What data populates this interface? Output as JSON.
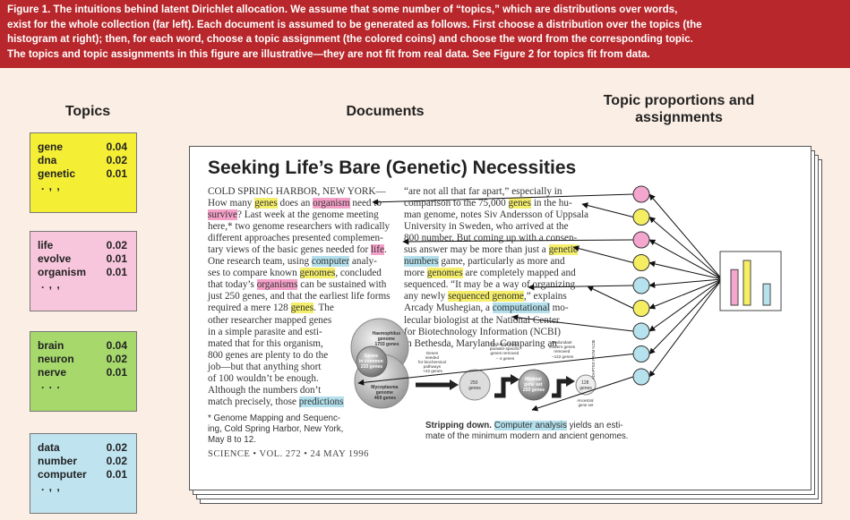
{
  "caption": {
    "lines": [
      "Figure 1. The intuitions behind latent Dirichlet allocation. We assume that some number of “topics,” which are distributions over words,",
      "exist for the whole collection (far left). Each document is assumed to be generated as follows. First choose a distribution over the topics (the",
      "histogram at right); then, for each word, choose a topic assignment (the colored coins) and choose the word from the corresponding topic.",
      "The topics and topic assignments in this figure are illustrative—they are not fit from real data. See Figure 2 for topics fit from data."
    ]
  },
  "headings": {
    "topics": "Topics",
    "documents": "Documents",
    "proportions_line1": "Topic proportions and",
    "proportions_line2": "assignments"
  },
  "topics": [
    {
      "color": "#f4ee35",
      "words": [
        {
          "w": "gene",
          "p": "0.04"
        },
        {
          "w": "dna",
          "p": "0.02"
        },
        {
          "w": "genetic",
          "p": "0.01"
        }
      ],
      "dots": ". , ,"
    },
    {
      "color": "#f8c6dc",
      "words": [
        {
          "w": "life",
          "p": "0.02"
        },
        {
          "w": "evolve",
          "p": "0.01"
        },
        {
          "w": "organism",
          "p": "0.01"
        }
      ],
      "dots": ". , ,"
    },
    {
      "color": "#a6d86c",
      "words": [
        {
          "w": "brain",
          "p": "0.04"
        },
        {
          "w": "neuron",
          "p": "0.02"
        },
        {
          "w": "nerve",
          "p": "0.01"
        }
      ],
      "dots": ". . ."
    },
    {
      "color": "#bfe4f0",
      "words": [
        {
          "w": "data",
          "p": "0.02"
        },
        {
          "w": "number",
          "p": "0.02"
        },
        {
          "w": "computer",
          "p": "0.01"
        }
      ],
      "dots": ". , ,"
    }
  ],
  "document": {
    "title": "Seeking Life’s Bare (Genetic) Necessities",
    "left_column": [
      [
        {
          "t": "COLD SPRING HARBOR, NEW YORK—"
        }
      ],
      [
        {
          "t": "How many "
        },
        {
          "t": "genes",
          "hl": "yellow"
        },
        {
          "t": " does an "
        },
        {
          "t": "organism",
          "hl": "pink"
        },
        {
          "t": " need to"
        }
      ],
      [
        {
          "t": "survive",
          "hl": "pink"
        },
        {
          "t": "? Last week at the genome meeting"
        }
      ],
      [
        {
          "t": "here,* two genome researchers with radically"
        }
      ],
      [
        {
          "t": "different approaches presented complemen-"
        }
      ],
      [
        {
          "t": "tary views of the basic genes needed for "
        },
        {
          "t": "life",
          "hl": "pink"
        },
        {
          "t": "."
        }
      ],
      [
        {
          "t": "One research team, using "
        },
        {
          "t": "computer",
          "hl": "blue"
        },
        {
          "t": " analy-"
        }
      ],
      [
        {
          "t": "ses to compare known "
        },
        {
          "t": "genomes",
          "hl": "yellow"
        },
        {
          "t": ", concluded"
        }
      ],
      [
        {
          "t": "that today’s "
        },
        {
          "t": "organisms",
          "hl": "pink"
        },
        {
          "t": " can be sustained with"
        }
      ],
      [
        {
          "t": "just 250 genes, and that the earliest life forms"
        }
      ],
      [
        {
          "t": "required a mere 128 "
        },
        {
          "t": "genes",
          "hl": "yellow"
        },
        {
          "t": ". The"
        }
      ],
      [
        {
          "t": "other researcher mapped genes"
        }
      ],
      [
        {
          "t": "in a simple parasite and esti-"
        }
      ],
      [
        {
          "t": "mated that for this organism,"
        }
      ],
      [
        {
          "t": "800 genes are plenty to do the"
        }
      ],
      [
        {
          "t": "job—but that anything short"
        }
      ],
      [
        {
          "t": "of 100 wouldn’t be enough."
        }
      ],
      [
        {
          "t": "   Although the numbers don’t"
        }
      ],
      [
        {
          "t": "match precisely, those "
        },
        {
          "t": "predictions",
          "hl": "blue"
        }
      ]
    ],
    "right_column": [
      [
        {
          "t": "“are not all that far apart,” especially in"
        }
      ],
      [
        {
          "t": "comparison to the 75,000 "
        },
        {
          "t": "genes",
          "hl": "yellow"
        },
        {
          "t": " in the hu-"
        }
      ],
      [
        {
          "t": "man genome, notes Siv Andersson of Uppsala"
        }
      ],
      [
        {
          "t": "University in Sweden, who arrived at the"
        }
      ],
      [
        {
          "t": "800 number. But coming up with a consen-"
        }
      ],
      [
        {
          "t": "sus answer may be more than just a "
        },
        {
          "t": "genetic",
          "hl": "yellow"
        }
      ],
      [
        {
          "t": "numbers",
          "hl": "blue"
        },
        {
          "t": " game, particularly as more and"
        }
      ],
      [
        {
          "t": "more "
        },
        {
          "t": "genomes",
          "hl": "yellow"
        },
        {
          "t": " are completely mapped and"
        }
      ],
      [
        {
          "t": "sequenced. “It may be a way of organizing"
        }
      ],
      [
        {
          "t": "any newly "
        },
        {
          "t": "sequenced genome",
          "hl": "yellow"
        },
        {
          "t": ",” explains"
        }
      ],
      [
        {
          "t": "Arcady Mushegian, a "
        },
        {
          "t": "computational",
          "hl": "blue"
        },
        {
          "t": " mo-"
        }
      ],
      [
        {
          "t": "lecular biologist at the National Center"
        }
      ],
      [
        {
          "t": "for Biotechnology Information (NCBI)"
        }
      ],
      [
        {
          "t": "in Bethesda, Maryland. Comparing an"
        }
      ]
    ],
    "footnote": [
      "* Genome Mapping and Sequenc-",
      "ing, Cold Spring Harbor, New York,",
      "May 8 to 12."
    ],
    "science_line": "SCIENCE • VOL. 272 • 24 MAY 1996",
    "figure_caption_bold": "Stripping down.",
    "figure_caption_hl": "Computer analysis",
    "figure_caption_rest": " yields an esti-",
    "figure_caption_line2": "mate of the minimum modern and ancient genomes.",
    "figure_labels": {
      "haemophilus": [
        "Haemophilus",
        "genome",
        "1703 genes"
      ],
      "genes_in_common": [
        "Genes",
        "in common",
        "233 genes"
      ],
      "mycoplasma": [
        "Mycoplasma",
        "genome",
        "469 genes"
      ],
      "genes_needed": [
        "Genes",
        "needed",
        "for biochemical",
        "pathways",
        "+22 genes"
      ],
      "redundant": [
        "Redundant and",
        "parasite-specific",
        "genes removed",
        "− 4 genes"
      ],
      "redundant2": [
        "Redundant",
        "modern genes",
        "removed",
        "−122 genes"
      ],
      "g250": [
        "250",
        "genes"
      ],
      "minimal": [
        "Minimal",
        "gene set",
        "250 genes"
      ],
      "g128": [
        "128",
        "genes"
      ],
      "ancestral": [
        "Ancestral",
        "gene set"
      ],
      "adapted": "ADAPTED FROM NCBI"
    }
  },
  "coins": [
    {
      "color": "#f4a6cf"
    },
    {
      "color": "#f6ee62"
    },
    {
      "color": "#f4a6cf"
    },
    {
      "color": "#f6ee62"
    },
    {
      "color": "#b6e2ee"
    },
    {
      "color": "#f6ee62"
    },
    {
      "color": "#b6e2ee"
    },
    {
      "color": "#b6e2ee"
    },
    {
      "color": "#b6e2ee"
    }
  ],
  "histogram": {
    "categories": [
      "pink",
      "yellow",
      "blue"
    ],
    "values": [
      0.35,
      0.44,
      0.21
    ],
    "colors": [
      "#f4a6cf",
      "#f6ee62",
      "#b6e2ee"
    ]
  },
  "colors": {
    "caption_bg": "#b8272b",
    "background": "#fbeee4"
  }
}
